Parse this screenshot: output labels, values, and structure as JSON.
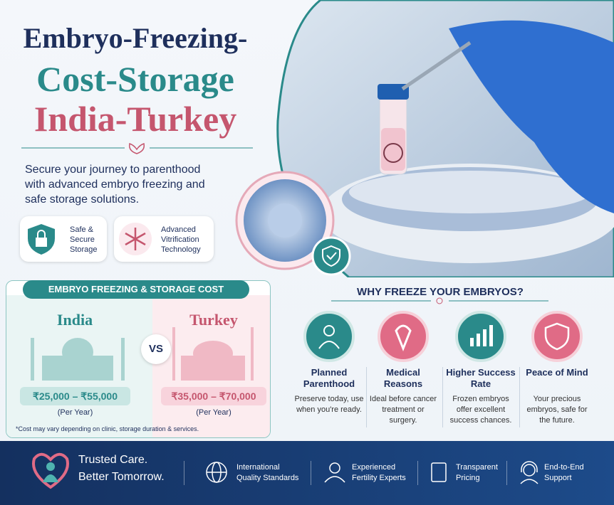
{
  "title": {
    "line1": "Embryo-Freezing-",
    "line2": "Cost-Storage",
    "line3": "India-Turkey"
  },
  "intro": "Secure your journey to parenthood with advanced embryo freezing and safe storage solutions.",
  "features": [
    {
      "label": "Safe & Secure Storage"
    },
    {
      "label": "Advanced Vitrification Technology"
    }
  ],
  "cost": {
    "heading": "EMBRYO FREEZING & STORAGE COST",
    "vs": "VS",
    "countries": [
      {
        "name": "India",
        "price": "₹25,000 – ₹55,000",
        "period": "(Per Year)"
      },
      {
        "name": "Turkey",
        "price": "₹35,000 – ₹70,000",
        "period": "(Per Year)"
      }
    ],
    "note": "*Cost may vary depending on clinic, storage duration & services."
  },
  "why": {
    "heading": "WHY FREEZE YOUR EMBRYOS?",
    "items": [
      {
        "title": "Planned Parenthood",
        "text": "Preserve today, use when you're ready."
      },
      {
        "title": "Medical Reasons",
        "text": "Ideal before cancer treatment or surgery."
      },
      {
        "title": "Higher Success Rate",
        "text": "Frozen embryos offer excellent success chances."
      },
      {
        "title": "Peace of Mind",
        "text": "Your precious embryos, safe for the future."
      }
    ]
  },
  "footer": {
    "tagline1": "Trusted Care.",
    "tagline2": "Better Tomorrow.",
    "badges": [
      {
        "label": "International Quality Standards"
      },
      {
        "label": "Experienced Fertility Experts"
      },
      {
        "label": "Transparent Pricing"
      },
      {
        "label": "End-to-End Support"
      }
    ]
  }
}
